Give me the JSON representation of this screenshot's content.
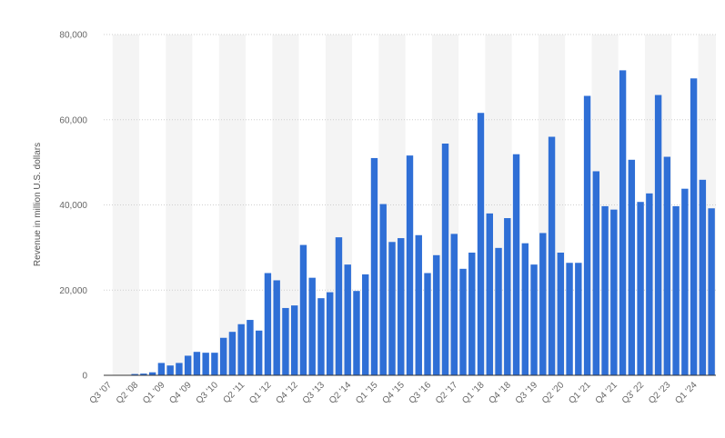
{
  "chart_data": {
    "type": "bar",
    "title": "",
    "xlabel": "",
    "ylabel": "Revenue in million U.S. dollars",
    "ylim": [
      0,
      80000
    ],
    "yticks": [
      0,
      20000,
      40000,
      60000,
      80000
    ],
    "ytick_labels": [
      "0",
      "20,000",
      "40,000",
      "60,000",
      "80,000"
    ],
    "grid": true,
    "bar_color": "#2f6fd6",
    "band_color": "#f4f4f4",
    "categories": [
      "Q3 '07",
      "Q4 '07",
      "Q1 '08",
      "Q2 '08",
      "Q3 '08",
      "Q4 '08",
      "Q1 '09",
      "Q2 '09",
      "Q3 '09",
      "Q4 '09",
      "Q1 '10",
      "Q2 '10",
      "Q3 '10",
      "Q4 '10",
      "Q1 '11",
      "Q2 '11",
      "Q3 '11",
      "Q4 '11",
      "Q1 '12",
      "Q2 '12",
      "Q3 '12",
      "Q4 '12",
      "Q1 '13",
      "Q2 '13",
      "Q3 '13",
      "Q4 '13",
      "Q1 '14",
      "Q2 '14",
      "Q3 '14",
      "Q4 '14",
      "Q1 '15",
      "Q2 '15",
      "Q3 '15",
      "Q4 '15",
      "Q1 '16",
      "Q2 '16",
      "Q3 '16",
      "Q4 '16",
      "Q1 '17",
      "Q2 '17",
      "Q3 '17",
      "Q4 '17",
      "Q1 '18",
      "Q2 '18",
      "Q3 '18",
      "Q4 '18",
      "Q1 '19",
      "Q2 '19",
      "Q3 '19",
      "Q4 '19",
      "Q1 '20",
      "Q2 '20",
      "Q3 '20",
      "Q4 '20",
      "Q1 '21",
      "Q2 '21",
      "Q3 '21",
      "Q4 '21",
      "Q1 '22",
      "Q2 '22",
      "Q3' 22",
      "Q4 '22",
      "Q1 '23",
      "Q2 '23",
      "Q3 '23",
      "Q4 '23",
      "Q1 '24",
      "Q2 '24",
      "Q3 '24"
    ],
    "values": [
      0,
      100,
      100,
      300,
      400,
      700,
      2900,
      2300,
      2900,
      4600,
      5500,
      5300,
      5300,
      8800,
      10200,
      12000,
      13000,
      10500,
      24000,
      22300,
      15800,
      16400,
      30600,
      22900,
      18100,
      19500,
      32400,
      26000,
      19800,
      23700,
      51000,
      40200,
      31300,
      32200,
      51600,
      32900,
      24000,
      28200,
      54400,
      33200,
      25000,
      28800,
      61600,
      38000,
      29900,
      36900,
      51900,
      31000,
      26000,
      33400,
      56000,
      28800,
      26400,
      26400,
      65600,
      47900,
      39700,
      38900,
      71600,
      50600,
      40700,
      42700,
      65800,
      51300,
      39700,
      43800,
      69700,
      45900,
      39200
    ],
    "x_tick_labels": [
      "Q3 '07",
      "Q2 '08",
      "Q1 '09",
      "Q4 '09",
      "Q3 '10",
      "Q2 '11",
      "Q1 '12",
      "Q4 '12",
      "Q3 '13",
      "Q2 '14",
      "Q1 '15",
      "Q4 '15",
      "Q3 '16",
      "Q2 '17",
      "Q1 '18",
      "Q4 '18",
      "Q3 '19",
      "Q2 '20",
      "Q1 '21",
      "Q4 '21",
      "Q3' 22",
      "Q2 '23",
      "Q1 '24"
    ]
  }
}
